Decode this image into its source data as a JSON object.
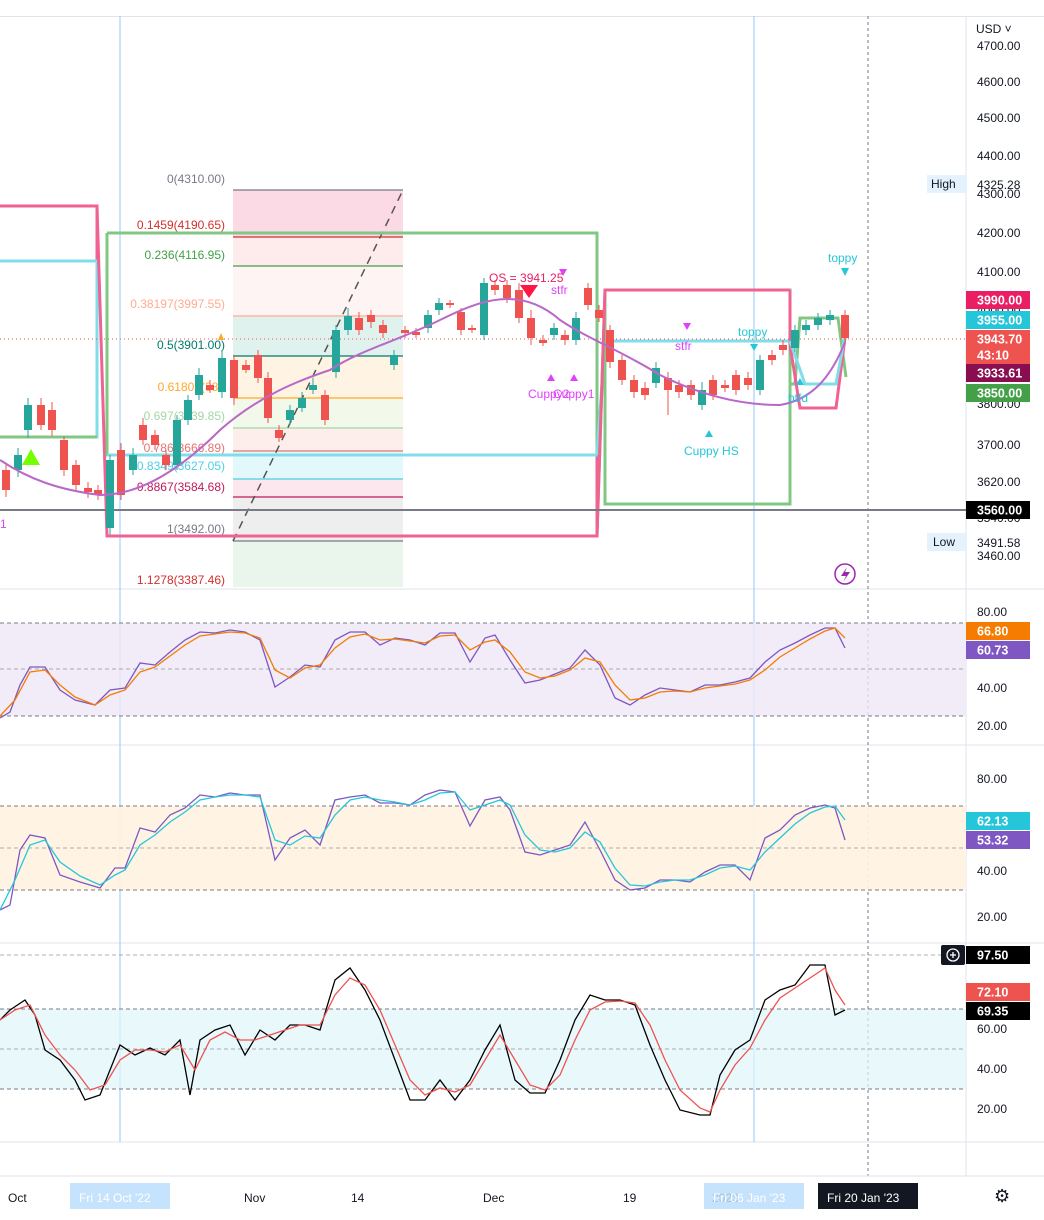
{
  "currency_label": "USD ˅",
  "settings_icon": "gear-icon",
  "price_axis": {
    "ticks": [
      "4700.00",
      "4600.00",
      "4500.00",
      "4400.00",
      "4300.00",
      "4200.00",
      "4100.00",
      "4000.00",
      "3800.00",
      "3700.00",
      "3620.00",
      "3540.00",
      "3460.00"
    ],
    "high_label": "High",
    "high_value": "4325.28",
    "low_label": "Low",
    "low_value": "3491.58",
    "badges": [
      {
        "text": "3990.00",
        "bg": "#e91e63",
        "fg": "#ffffff"
      },
      {
        "text": "3955.00",
        "bg": "#26c6da",
        "fg": "#ffffff"
      },
      {
        "text": "3943.70",
        "bg": "#ef5350",
        "fg": "#ffffff"
      },
      {
        "text": "43:10",
        "bg": "#ef5350",
        "fg": "#ffffff"
      },
      {
        "text": "3933.61",
        "bg": "#880e4f",
        "fg": "#ffffff"
      },
      {
        "text": "3850.00",
        "bg": "#43a047",
        "fg": "#ffffff"
      },
      {
        "text": "3560.00",
        "bg": "#000000",
        "fg": "#ffffff"
      }
    ]
  },
  "fib_levels": [
    {
      "text": "0(4310.00)",
      "color": "#787b86"
    },
    {
      "text": "0.1459(4190.65)",
      "color": "#d32f2f"
    },
    {
      "text": "0.236(4116.95)",
      "color": "#43a047"
    },
    {
      "text": "0.38197(3997.55)",
      "color": "#ffab91"
    },
    {
      "text": "0.5(3901.00)",
      "color": "#00796b"
    },
    {
      "text": "0.61803(380",
      "color": "#ffa726"
    },
    {
      "text": "0.697(3739.85)",
      "color": "#a5d6a7"
    },
    {
      "text": "0.786(3666.89)",
      "color": "#e57373"
    },
    {
      "text": "0.8349(3627.05)",
      "color": "#4dd0e1"
    },
    {
      "text": "0.8867(3584.68)",
      "color": "#c2185b"
    },
    {
      "text": "1(3492.00)",
      "color": "#787b86"
    },
    {
      "text": "1.1278(3387.46)",
      "color": "#d32f2f"
    }
  ],
  "annotations": [
    {
      "text": "OS = 3941.25",
      "color": "#e91e63"
    },
    {
      "text": "stfr",
      "color": "#e040fb"
    },
    {
      "text": "stfr",
      "color": "#e040fb"
    },
    {
      "text": "Cuppy2",
      "color": "#e040fb"
    },
    {
      "text": "Cuppy1",
      "color": "#e040fb"
    },
    {
      "text": "toppy",
      "color": "#26c6da"
    },
    {
      "text": "toppy",
      "color": "#26c6da"
    },
    {
      "text": "Cuppy HS",
      "color": "#26c6da"
    },
    {
      "text": "btfd",
      "color": "#26c6da"
    },
    {
      "text": "1",
      "color": "#e040fb"
    }
  ],
  "rsi_panel": {
    "ticks": [
      "80.00",
      "60.00",
      "40.00",
      "20.00"
    ],
    "badges": [
      {
        "text": "66.80",
        "bg": "#f57c00",
        "fg": "#ffffff"
      },
      {
        "text": "60.73",
        "bg": "#7e57c2",
        "fg": "#ffffff"
      }
    ]
  },
  "stoch_panel": {
    "ticks": [
      "80.00",
      "60.00",
      "40.00",
      "20.00"
    ],
    "badges": [
      {
        "text": "62.13",
        "bg": "#26c6da",
        "fg": "#ffffff"
      },
      {
        "text": "53.32",
        "bg": "#7e57c2",
        "fg": "#ffffff"
      }
    ]
  },
  "third_panel": {
    "ticks": [
      "60.00",
      "40.00",
      "20.00"
    ],
    "badges": [
      {
        "text": "97.50",
        "bg": "#000000",
        "fg": "#ffffff"
      },
      {
        "text": "72.10",
        "bg": "#ef5350",
        "fg": "#ffffff"
      },
      {
        "text": "69.35",
        "bg": "#000000",
        "fg": "#ffffff"
      }
    ]
  },
  "time_axis": {
    "labels": [
      "Oct",
      "Nov",
      "14",
      "Dec",
      "19",
      "2023"
    ],
    "highlight_left": "Fri 14 Oct '22",
    "highlight_mid": "Fri 06 Jan '23",
    "crosshair_date": "Fri 20 Jan '23"
  }
}
